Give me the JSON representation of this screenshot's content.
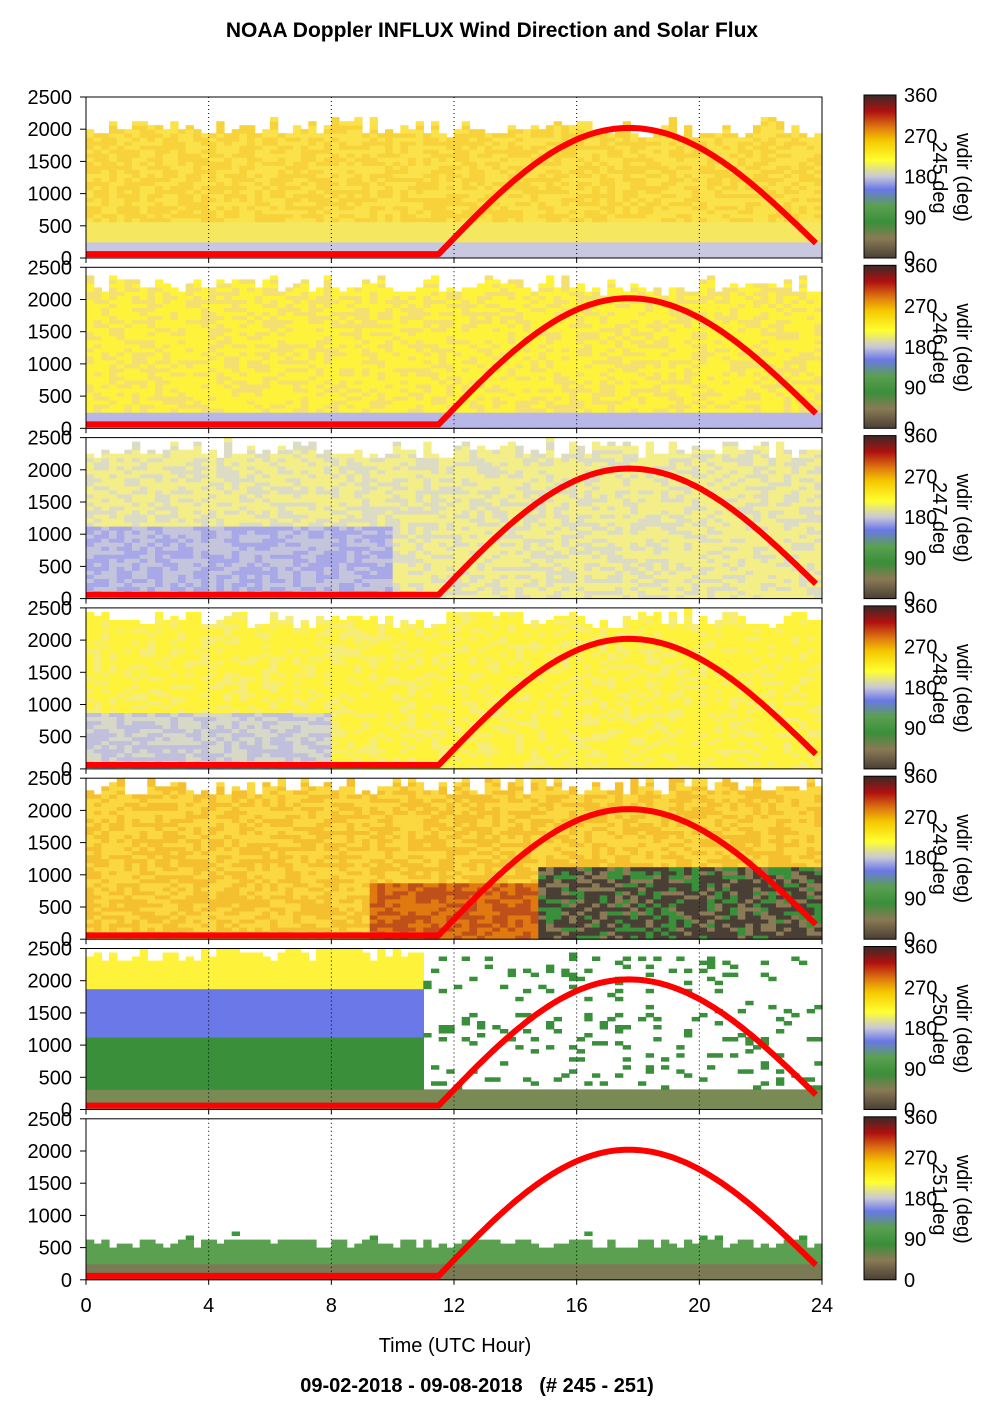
{
  "title": "NOAA Doppler INFLUX Wind Direction and Solar Flux",
  "xlabel": "Time (UTC Hour)",
  "footer": "09-02-2018 - 09-08-2018   (# 245 - 251)",
  "colors": {
    "solar_curve": "#ff0000",
    "colorbar_stops": [
      "#4a3f35",
      "#8a7a55",
      "#3a8f3a",
      "#5aa050",
      "#6a78e8",
      "#c8c8d8",
      "#ffff30",
      "#f5c800",
      "#e07a10",
      "#b01010",
      "#3a2a28"
    ]
  },
  "chart_data": [
    {
      "type": "heatmap",
      "panel": "245",
      "xlim": [
        0,
        24
      ],
      "ylim": [
        0,
        2500
      ],
      "xticks": [
        0,
        4,
        8,
        12,
        16,
        20,
        24
      ],
      "yticks": [
        0,
        500,
        1000,
        1500,
        2000,
        2500
      ],
      "colorbar": {
        "label": "wdir (deg)",
        "day_label": "245 deg",
        "ticks": [
          0,
          90,
          180,
          270,
          360
        ],
        "range": [
          0,
          360
        ]
      },
      "dominant": "yellow-orange",
      "top_height": 2000,
      "solar_flux": {
        "rise_hour": 11.5,
        "peak_hour": 17.7,
        "peak_height": 2020,
        "set_hour": 23.8,
        "end_height": 230,
        "night_height": 60
      }
    },
    {
      "type": "heatmap",
      "panel": "246",
      "xlim": [
        0,
        24
      ],
      "ylim": [
        0,
        2500
      ],
      "xticks": [
        0,
        4,
        8,
        12,
        16,
        20,
        24
      ],
      "yticks": [
        0,
        500,
        1000,
        1500,
        2000,
        2500
      ],
      "colorbar": {
        "label": "wdir (deg)",
        "day_label": "246 deg",
        "ticks": [
          0,
          90,
          180,
          270,
          360
        ],
        "range": [
          0,
          360
        ]
      },
      "dominant": "yellow",
      "top_height": 2200,
      "solar_flux": {
        "rise_hour": 11.5,
        "peak_hour": 17.7,
        "peak_height": 2020,
        "set_hour": 23.8,
        "end_height": 230,
        "night_height": 60
      }
    },
    {
      "type": "heatmap",
      "panel": "247",
      "xlim": [
        0,
        24
      ],
      "ylim": [
        0,
        2500
      ],
      "xticks": [
        0,
        4,
        8,
        12,
        16,
        20,
        24
      ],
      "yticks": [
        0,
        500,
        1000,
        1500,
        2000,
        2500
      ],
      "colorbar": {
        "label": "wdir (deg)",
        "day_label": "247 deg",
        "ticks": [
          0,
          90,
          180,
          270,
          360
        ],
        "range": [
          0,
          360
        ]
      },
      "dominant": "pale yellow / blue-grey",
      "top_height": 2300,
      "solar_flux": {
        "rise_hour": 11.5,
        "peak_hour": 17.7,
        "peak_height": 2020,
        "set_hour": 23.8,
        "end_height": 230,
        "night_height": 60
      }
    },
    {
      "type": "heatmap",
      "panel": "248",
      "xlim": [
        0,
        24
      ],
      "ylim": [
        0,
        2500
      ],
      "xticks": [
        0,
        4,
        8,
        12,
        16,
        20,
        24
      ],
      "yticks": [
        0,
        500,
        1000,
        1500,
        2000,
        2500
      ],
      "colorbar": {
        "label": "wdir (deg)",
        "day_label": "248 deg",
        "ticks": [
          0,
          90,
          180,
          270,
          360
        ],
        "range": [
          0,
          360
        ]
      },
      "dominant": "yellow",
      "top_height": 2300,
      "solar_flux": {
        "rise_hour": 11.5,
        "peak_hour": 17.7,
        "peak_height": 2020,
        "set_hour": 23.8,
        "end_height": 230,
        "night_height": 60
      }
    },
    {
      "type": "heatmap",
      "panel": "249",
      "xlim": [
        0,
        24
      ],
      "ylim": [
        0,
        2500
      ],
      "xticks": [
        0,
        4,
        8,
        12,
        16,
        20,
        24
      ],
      "yticks": [
        0,
        500,
        1000,
        1500,
        2000,
        2500
      ],
      "colorbar": {
        "label": "wdir (deg)",
        "day_label": "249 deg",
        "ticks": [
          0,
          90,
          180,
          270,
          360
        ],
        "range": [
          0,
          360
        ]
      },
      "dominant": "orange / dark red / green",
      "top_height": 2350,
      "solar_flux": {
        "rise_hour": 11.5,
        "peak_hour": 17.7,
        "peak_height": 2020,
        "set_hour": 23.8,
        "end_height": 230,
        "night_height": 60
      }
    },
    {
      "type": "heatmap",
      "panel": "250",
      "xlim": [
        0,
        24
      ],
      "ylim": [
        0,
        2500
      ],
      "xticks": [
        0,
        4,
        8,
        12,
        16,
        20,
        24
      ],
      "yticks": [
        0,
        500,
        1000,
        1500,
        2000,
        2500
      ],
      "colorbar": {
        "label": "wdir (deg)",
        "day_label": "250 deg",
        "ticks": [
          0,
          90,
          180,
          270,
          360
        ],
        "range": [
          0,
          360
        ]
      },
      "dominant": "green / blue / sparse",
      "top_height": 2400,
      "solar_flux": {
        "rise_hour": 11.5,
        "peak_hour": 17.7,
        "peak_height": 2020,
        "set_hour": 23.8,
        "end_height": 230,
        "night_height": 60
      }
    },
    {
      "type": "heatmap",
      "panel": "251",
      "xlim": [
        0,
        24
      ],
      "ylim": [
        0,
        2500
      ],
      "xticks": [
        0,
        4,
        8,
        12,
        16,
        20,
        24
      ],
      "yticks": [
        0,
        500,
        1000,
        1500,
        2000,
        2500
      ],
      "colorbar": {
        "label": "wdir (deg)",
        "day_label": "251 deg",
        "ticks": [
          0,
          90,
          180,
          270,
          360
        ],
        "range": [
          0,
          360
        ]
      },
      "dominant": "green / sparse",
      "top_height": 600,
      "solar_flux": {
        "rise_hour": 11.5,
        "peak_hour": 17.7,
        "peak_height": 2020,
        "set_hour": 23.8,
        "end_height": 230,
        "night_height": 60
      }
    }
  ]
}
